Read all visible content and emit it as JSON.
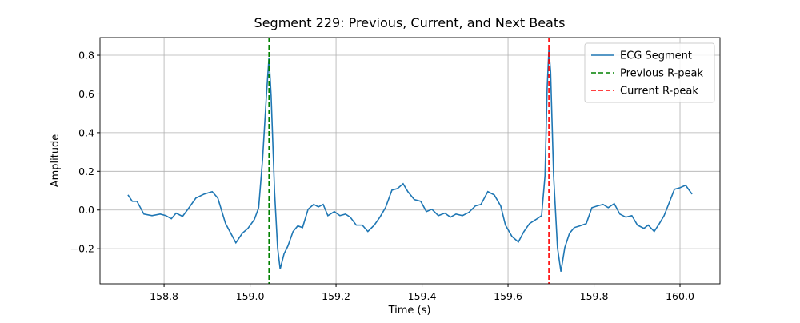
{
  "chart_data": {
    "type": "line",
    "title": "Segment 229: Previous, Current, and Next Beats",
    "x_label": "Time (s)",
    "y_label": "Amplitude",
    "xlim": [
      158.651,
      160.093
    ],
    "ylim": [
      -0.381,
      0.891
    ],
    "xticks": [
      158.8,
      {
        "value": 159,
        "label": "159.0"
      },
      159.2,
      159.4,
      159.6,
      159.8,
      {
        "value": 160,
        "label": "160.0"
      }
    ],
    "yticks": [
      {
        "value": -0.2,
        "label": "−0.2"
      },
      {
        "value": 0,
        "label": "0.0"
      },
      0.2,
      0.4,
      0.6,
      0.8
    ],
    "grid": true,
    "legend": "upper right",
    "x": [
      158.716,
      158.726,
      158.737,
      158.753,
      158.772,
      158.791,
      158.804,
      158.817,
      158.828,
      158.843,
      158.858,
      158.874,
      158.893,
      158.912,
      158.925,
      158.943,
      158.967,
      158.982,
      158.995,
      159.01,
      159.02,
      159.029,
      159.038,
      159.044,
      159.049,
      159.057,
      159.064,
      159.07,
      159.079,
      159.088,
      159.1,
      159.111,
      159.122,
      159.135,
      159.148,
      159.159,
      159.17,
      159.181,
      159.196,
      159.209,
      159.222,
      159.233,
      159.247,
      159.261,
      159.274,
      159.289,
      159.302,
      159.315,
      159.33,
      159.343,
      159.356,
      159.367,
      159.382,
      159.397,
      159.41,
      159.423,
      159.438,
      159.453,
      159.466,
      159.479,
      159.494,
      159.509,
      159.524,
      159.537,
      159.553,
      159.568,
      159.583,
      159.594,
      159.609,
      159.624,
      159.637,
      159.65,
      159.665,
      159.678,
      159.686,
      159.691,
      159.695,
      159.699,
      159.706,
      159.715,
      159.723,
      159.732,
      159.743,
      159.754,
      159.767,
      159.782,
      159.795,
      159.808,
      159.821,
      159.833,
      159.847,
      159.86,
      159.874,
      159.888,
      159.901,
      159.916,
      159.926,
      159.94,
      159.952,
      159.963,
      159.974,
      159.987,
      160.0,
      160.013,
      160.028
    ],
    "series": [
      {
        "name": "ECG Segment",
        "color": "#1f77b4",
        "values": [
          0.078,
          0.045,
          0.045,
          -0.021,
          -0.029,
          -0.021,
          -0.029,
          -0.045,
          -0.016,
          -0.033,
          0.012,
          0.062,
          0.082,
          0.095,
          0.062,
          -0.07,
          -0.169,
          -0.12,
          -0.095,
          -0.049,
          0.012,
          0.26,
          0.59,
          0.788,
          0.59,
          0.095,
          -0.194,
          -0.305,
          -0.227,
          -0.186,
          -0.111,
          -0.082,
          -0.091,
          0.004,
          0.029,
          0.016,
          0.029,
          -0.029,
          -0.008,
          -0.029,
          -0.021,
          -0.037,
          -0.078,
          -0.078,
          -0.111,
          -0.078,
          -0.037,
          0.012,
          0.103,
          0.111,
          0.136,
          0.095,
          0.054,
          0.045,
          -0.008,
          0.004,
          -0.029,
          -0.016,
          -0.037,
          -0.021,
          -0.029,
          -0.012,
          0.021,
          0.029,
          0.095,
          0.078,
          0.021,
          -0.078,
          -0.136,
          -0.165,
          -0.111,
          -0.07,
          -0.049,
          -0.029,
          0.177,
          0.631,
          0.829,
          0.713,
          0.177,
          -0.194,
          -0.318,
          -0.194,
          -0.12,
          -0.091,
          -0.082,
          -0.07,
          0.012,
          0.021,
          0.029,
          0.012,
          0.033,
          -0.021,
          -0.037,
          -0.029,
          -0.078,
          -0.095,
          -0.078,
          -0.111,
          -0.07,
          -0.029,
          0.033,
          0.107,
          0.115,
          0.128,
          0.082
        ]
      }
    ],
    "vlines": [
      {
        "name": "Previous R-peak",
        "color": "#008000",
        "x": 159.044
      },
      {
        "name": "Current R-peak",
        "color": "#ff0000",
        "x": 159.695
      }
    ]
  }
}
